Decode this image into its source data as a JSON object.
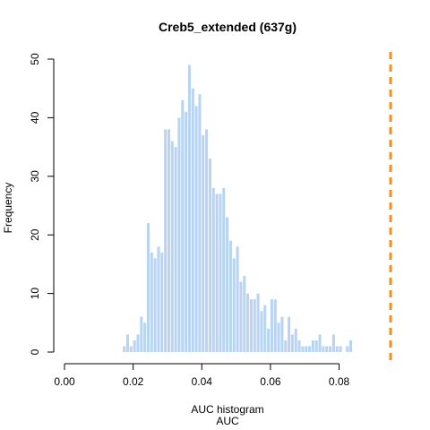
{
  "chart_data": {
    "type": "bar",
    "title": "Creb5_extended (637g)",
    "xlabel": "AUC histogram",
    "xlabel2": "AUC",
    "ylabel": "Frequency",
    "xlim": [
      0,
      0.095
    ],
    "ylim": [
      0,
      50
    ],
    "xticks": [
      "0.00",
      "0.02",
      "0.04",
      "0.06",
      "0.08"
    ],
    "xtick_values": [
      0,
      0.02,
      0.04,
      0.06,
      0.08
    ],
    "yticks": [
      "0",
      "10",
      "20",
      "30",
      "40",
      "50"
    ],
    "ytick_values": [
      0,
      10,
      20,
      30,
      40,
      50
    ],
    "bin_width": 0.001,
    "bin_start": 0.017,
    "values": [
      1,
      3,
      1,
      2,
      3,
      6,
      5,
      22,
      17,
      16,
      18,
      17,
      38,
      38,
      36,
      35,
      40,
      43,
      41,
      49,
      45,
      42,
      44,
      37,
      38,
      33,
      28,
      27,
      27,
      28,
      23,
      19,
      16,
      18,
      12,
      13,
      10,
      9,
      9,
      10,
      7,
      8,
      4,
      9,
      9,
      5,
      6,
      2,
      6,
      3,
      4,
      2,
      1,
      1,
      1,
      2,
      2,
      3,
      1,
      1,
      1,
      3,
      1,
      1,
      0,
      1,
      2
    ],
    "bar_color": "#b8d4f2",
    "threshold": {
      "x": 0.095,
      "color": "#ff8c1a",
      "style": "dashed"
    },
    "grid": false,
    "legend": "none"
  }
}
